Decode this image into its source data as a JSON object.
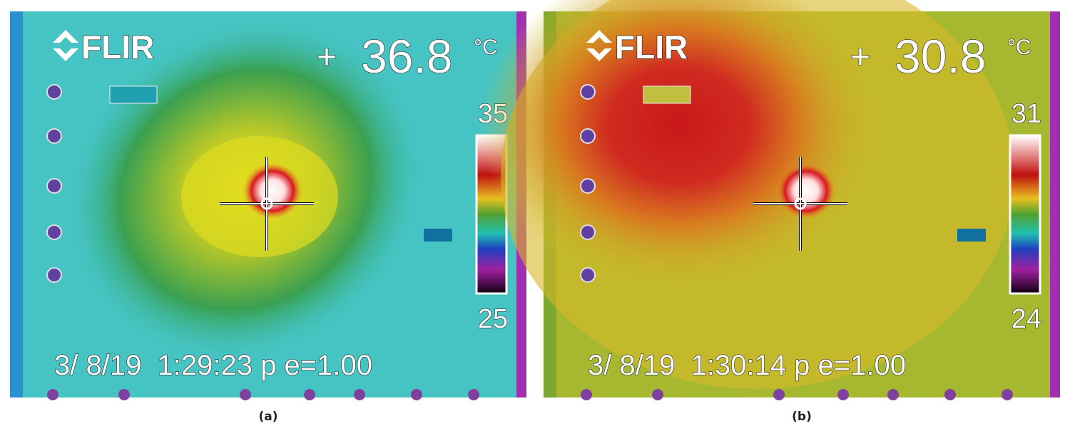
{
  "panels": [
    {
      "brand": "FLIR",
      "spot_marker": "+",
      "spot_temp": 36.8,
      "unit": "°C",
      "scale_max": 35,
      "scale_min": 25,
      "timestamp": "3/ 8/19  1:29:23 p e=1.00",
      "caption": "(a)"
    },
    {
      "brand": "FLIR",
      "spot_marker": "+",
      "spot_temp": 30.8,
      "unit": "°C",
      "scale_max": 31,
      "scale_min": 24,
      "timestamp": "3/ 8/19  1:30:14 p e=1.00",
      "caption": "(b)"
    }
  ]
}
